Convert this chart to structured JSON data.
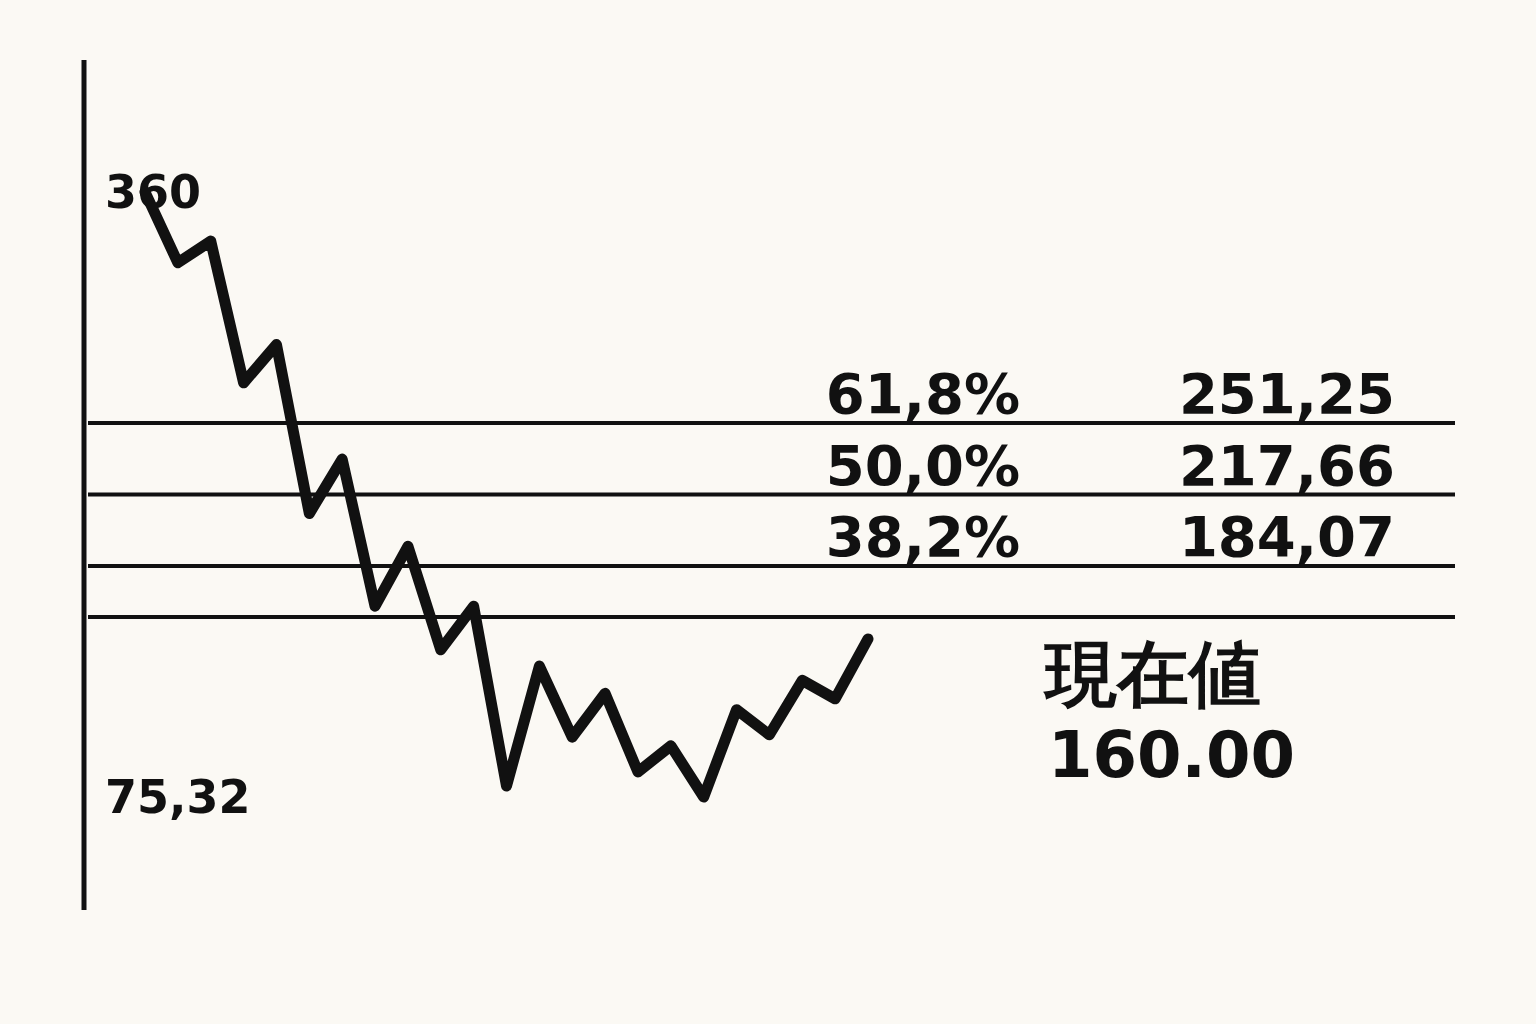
{
  "chart_data": {
    "type": "line",
    "categories": [
      null,
      null,
      null,
      null,
      null,
      null,
      null,
      null,
      null,
      null,
      null,
      null,
      null,
      null,
      null,
      null,
      null,
      null,
      null,
      null,
      null,
      null,
      null
    ],
    "series": [
      {
        "color": "#111111",
        "values": [
          360,
          326.7,
          336.9,
          270.2,
          288.2,
          208.7,
          234.3,
          165.1,
          193.3,
          144.6,
          165.1,
          80.5,
          136.9,
          103.5,
          124.1,
          87.1,
          99.4,
          75.32,
          116.4,
          104.6,
          130.2,
          121.5,
          149.7
        ]
      }
    ],
    "ylim": [
      75.32,
      360
    ],
    "yticks": [
      360,
      {
        "value": 75.32,
        "label": "75,32"
      }
    ],
    "ref_lines": [
      {
        "axis": "y",
        "value": 251.25,
        "label": "251,25",
        "color": "#111111"
      },
      {
        "axis": "y",
        "value": 217.66,
        "label": "217,66",
        "color": "#111111"
      },
      {
        "axis": "y",
        "value": 184.07,
        "label": "184,07",
        "color": "#111111"
      },
      {
        "axis": "y",
        "value": 160.0,
        "label": "160.00",
        "color": "#111111"
      }
    ],
    "annotations": [
      "61,8%",
      "50,0%",
      "38,2%",
      "現在値"
    ],
    "marker": "none",
    "line_style": "solid"
  }
}
